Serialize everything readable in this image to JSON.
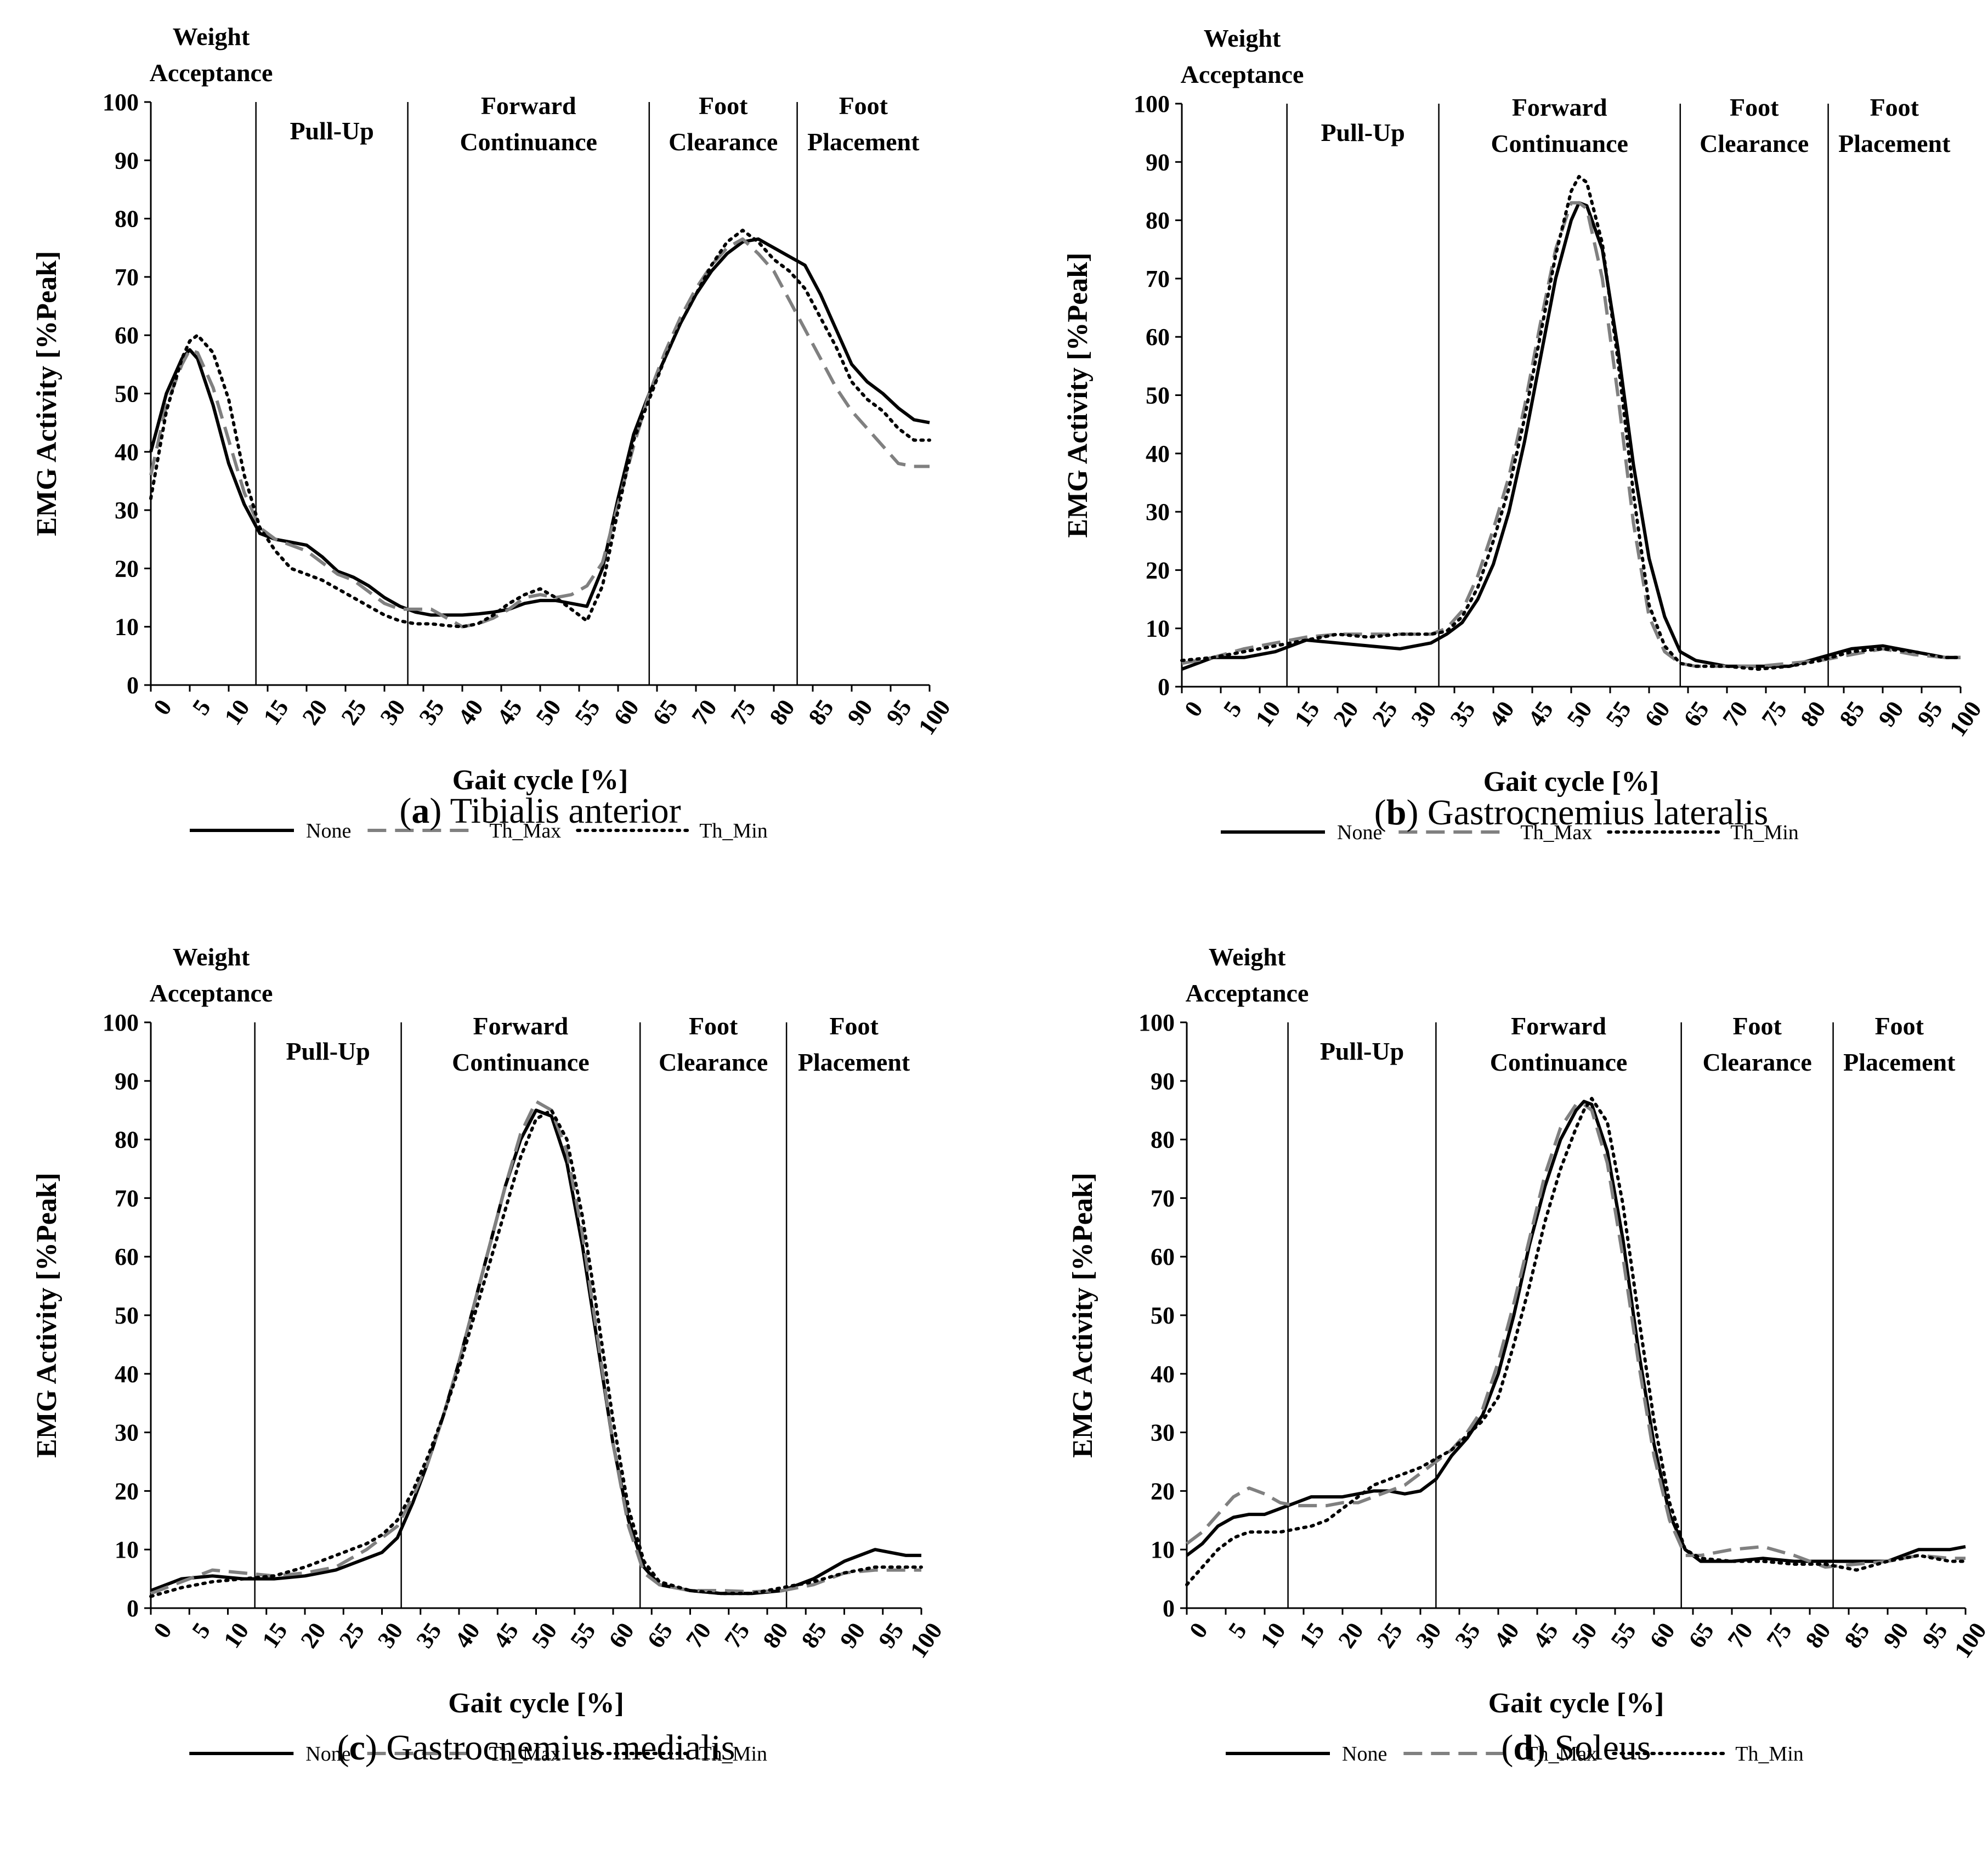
{
  "figure": {
    "panels": [
      {
        "caption_letter": "a",
        "caption_text": "Tibialis anterior"
      },
      {
        "caption_letter": "b",
        "caption_text": "Gastrocnemius lateralis"
      },
      {
        "caption_letter": "c",
        "caption_text": "Gastrocnemius medialis"
      },
      {
        "caption_letter": "d",
        "caption_text": "Soleus"
      }
    ],
    "caption_paren_open": "(",
    "caption_paren_close": ")",
    "phase_labels": [
      [
        "Weight",
        "Acceptance"
      ],
      [
        "Pull-Up"
      ],
      [
        "Forward",
        "Continuance"
      ],
      [
        "Foot",
        "Clearance"
      ],
      [
        "Foot",
        "Placement"
      ]
    ],
    "series_styles": {
      "None": {
        "color": "#000000",
        "dash": ""
      },
      "Th_Max": {
        "color": "#808080",
        "dash": "34,16"
      },
      "Th_Min": {
        "color": "#000000",
        "dash": "4,10"
      }
    }
  },
  "chart_data": [
    {
      "type": "line",
      "xlabel": "Gait cycle [%]",
      "ylabel": "EMG Activity [%Peak]",
      "xlim": [
        0,
        100
      ],
      "ylim": [
        0,
        100
      ],
      "xticks": [
        0,
        5,
        10,
        15,
        20,
        25,
        30,
        35,
        40,
        45,
        50,
        55,
        60,
        65,
        70,
        75,
        80,
        85,
        90,
        95,
        100
      ],
      "yticks": [
        0,
        10,
        20,
        30,
        40,
        50,
        60,
        70,
        80,
        90,
        100
      ],
      "phase_boundaries": [
        13.5,
        33,
        64,
        83
      ],
      "legend": [
        "None",
        "Th_Max",
        "Th_Min"
      ],
      "legend_position": "bottom",
      "x": [
        0,
        2,
        4,
        5,
        6,
        8,
        10,
        12,
        14,
        16,
        18,
        20,
        22,
        24,
        26,
        28,
        30,
        32,
        34,
        36,
        38,
        40,
        42,
        44,
        46,
        48,
        50,
        52,
        54,
        56,
        58,
        60,
        62,
        64,
        66,
        68,
        70,
        72,
        74,
        76,
        78,
        80,
        82,
        84,
        86,
        88,
        90,
        92,
        94,
        96,
        98,
        100
      ],
      "series": [
        {
          "name": "None",
          "values": [
            40,
            50,
            56,
            57.5,
            56,
            48,
            38,
            31,
            26,
            25,
            24.5,
            24,
            22,
            19.5,
            18.5,
            17,
            15,
            13.5,
            12.5,
            12,
            12,
            12,
            12.2,
            12.5,
            13,
            14,
            14.5,
            14.5,
            14,
            13.5,
            20,
            32,
            43,
            50,
            56,
            62,
            67,
            71,
            74,
            76,
            76.5,
            75,
            73.5,
            72,
            67,
            61,
            55,
            52,
            50,
            47.5,
            45.5,
            45
          ]
        },
        {
          "name": "Th_Max",
          "values": [
            36,
            48,
            55,
            57.5,
            57,
            51,
            42,
            33,
            27,
            25,
            24,
            23,
            21,
            19,
            18,
            16,
            14,
            13,
            13,
            13,
            11.5,
            10,
            10.5,
            11.5,
            13,
            15,
            15.5,
            15,
            15.5,
            17,
            21,
            31,
            41,
            50,
            57,
            63,
            68,
            72,
            75,
            76.5,
            74,
            71,
            66,
            61,
            56,
            51,
            47,
            44,
            41,
            38,
            37.5,
            37.5
          ]
        },
        {
          "name": "Th_Min",
          "values": [
            32,
            47,
            56,
            59,
            60,
            57,
            49,
            36,
            27,
            23,
            20,
            19,
            18,
            16.5,
            15,
            13.5,
            12,
            11,
            10.5,
            10.5,
            10.2,
            10,
            10.5,
            12,
            14,
            15.5,
            16.5,
            15,
            13,
            11,
            17,
            30,
            42,
            49,
            56,
            62,
            67,
            72,
            76,
            78,
            76,
            73,
            71,
            68,
            63,
            58,
            52,
            49,
            47,
            44,
            42,
            42
          ]
        }
      ]
    },
    {
      "type": "line",
      "xlabel": "Gait cycle [%]",
      "ylabel": "EMG Activity [%Peak]",
      "xlim": [
        0,
        100
      ],
      "ylim": [
        0,
        100
      ],
      "xticks": [
        0,
        5,
        10,
        15,
        20,
        25,
        30,
        35,
        40,
        45,
        50,
        55,
        60,
        65,
        70,
        75,
        80,
        85,
        90,
        95,
        100
      ],
      "yticks": [
        0,
        10,
        20,
        30,
        40,
        50,
        60,
        70,
        80,
        90,
        100
      ],
      "phase_boundaries": [
        13.5,
        33,
        64,
        83
      ],
      "legend": [
        "None",
        "Th_Max",
        "Th_Min"
      ],
      "legend_position": "bottom",
      "x": [
        0,
        4,
        8,
        12,
        16,
        20,
        24,
        28,
        32,
        34,
        36,
        38,
        40,
        42,
        44,
        46,
        48,
        50,
        51,
        52,
        54,
        56,
        58,
        60,
        62,
        64,
        66,
        70,
        74,
        78,
        82,
        86,
        90,
        94,
        98,
        100
      ],
      "series": [
        {
          "name": "None",
          "values": [
            3,
            5,
            5,
            6,
            8,
            7.5,
            7,
            6.5,
            7.5,
            9,
            11,
            15,
            21,
            30,
            42,
            56,
            70,
            80,
            83,
            82.5,
            75,
            58,
            38,
            22,
            12,
            6,
            4.5,
            3.5,
            3.5,
            3.5,
            5,
            6.5,
            7,
            6,
            5,
            5
          ]
        },
        {
          "name": "Th_Max",
          "values": [
            4,
            5,
            6.5,
            7.5,
            8.5,
            9,
            9,
            9,
            9,
            10,
            13,
            19,
            27,
            36,
            48,
            62,
            75,
            83,
            83,
            82,
            70,
            50,
            28,
            12,
            6,
            4,
            3.5,
            3.5,
            3.5,
            4,
            4.5,
            5.5,
            6.5,
            5.5,
            5,
            5
          ]
        },
        {
          "name": "Th_Min",
          "values": [
            4.5,
            5,
            6,
            7,
            8,
            9,
            8.5,
            9,
            9,
            9.5,
            12,
            17,
            25,
            34,
            46,
            60,
            74,
            85,
            87.5,
            86.5,
            76,
            56,
            33,
            14,
            7,
            4,
            3.5,
            3.5,
            3,
            3.5,
            4.5,
            6,
            6.5,
            6,
            5,
            5
          ]
        }
      ]
    },
    {
      "type": "line",
      "xlabel": "Gait cycle [%]",
      "ylabel": "EMG Activity [%Peak]",
      "xlim": [
        0,
        100
      ],
      "ylim": [
        0,
        100
      ],
      "xticks": [
        0,
        5,
        10,
        15,
        20,
        25,
        30,
        35,
        40,
        45,
        50,
        55,
        60,
        65,
        70,
        75,
        80,
        85,
        90,
        95,
        100
      ],
      "yticks": [
        0,
        10,
        20,
        30,
        40,
        50,
        60,
        70,
        80,
        90,
        100
      ],
      "phase_boundaries": [
        13.5,
        32.5,
        63.5,
        82.5
      ],
      "legend": [
        "None",
        "Th_Max",
        "Th_Min"
      ],
      "legend_position": "bottom",
      "x": [
        0,
        4,
        8,
        12,
        16,
        20,
        24,
        28,
        30,
        32,
        34,
        36,
        38,
        40,
        42,
        44,
        46,
        48,
        50,
        52,
        54,
        56,
        58,
        60,
        62,
        64,
        66,
        70,
        74,
        78,
        82,
        86,
        90,
        94,
        98,
        100
      ],
      "series": [
        {
          "name": "None",
          "values": [
            3,
            5,
            5.5,
            5,
            5,
            5.5,
            6.5,
            8.5,
            9.5,
            12,
            18,
            25,
            33,
            42,
            52,
            62,
            72,
            80,
            85,
            84,
            76,
            62,
            45,
            28,
            15,
            7,
            4,
            3,
            2.5,
            2.5,
            3,
            5,
            8,
            10,
            9,
            9
          ]
        },
        {
          "name": "Th_Max",
          "values": [
            2.5,
            4.5,
            6.5,
            6,
            5.5,
            6,
            7,
            10,
            12,
            14,
            19,
            25,
            33,
            42,
            52,
            62,
            72,
            81,
            86.5,
            85,
            78,
            64,
            46,
            28,
            14,
            6,
            4,
            3,
            3,
            2.8,
            3,
            4,
            6,
            6.5,
            6.5,
            6.5
          ]
        },
        {
          "name": "Th_Min",
          "values": [
            2,
            3.5,
            4.5,
            5,
            5.5,
            7,
            9,
            11,
            12.5,
            15,
            20,
            26,
            33,
            41,
            50,
            59,
            68,
            77,
            83.5,
            85,
            80,
            67,
            50,
            32,
            17,
            8,
            4.5,
            3,
            2.5,
            2.5,
            3.5,
            4.5,
            6,
            7,
            7,
            7
          ]
        }
      ]
    },
    {
      "type": "line",
      "xlabel": "Gait cycle [%]",
      "ylabel": "EMG Activity [%Peak]",
      "xlim": [
        0,
        100
      ],
      "ylim": [
        0,
        100
      ],
      "xticks": [
        0,
        5,
        10,
        15,
        20,
        25,
        30,
        35,
        40,
        45,
        50,
        55,
        60,
        65,
        70,
        75,
        80,
        85,
        90,
        95,
        100
      ],
      "yticks": [
        0,
        10,
        20,
        30,
        40,
        50,
        60,
        70,
        80,
        90,
        100
      ],
      "phase_boundaries": [
        13,
        32,
        63.5,
        83
      ],
      "legend": [
        "None",
        "Th_Max",
        "Th_Min"
      ],
      "legend_position": "bottom",
      "x": [
        0,
        2,
        4,
        6,
        8,
        10,
        12,
        14,
        16,
        18,
        20,
        22,
        24,
        26,
        28,
        30,
        32,
        34,
        36,
        38,
        40,
        42,
        44,
        46,
        48,
        50,
        51,
        52,
        54,
        56,
        58,
        60,
        62,
        64,
        66,
        70,
        74,
        78,
        82,
        86,
        90,
        94,
        98,
        100
      ],
      "series": [
        {
          "name": "None",
          "values": [
            9,
            11,
            14,
            15.5,
            16,
            16,
            17,
            18,
            19,
            19,
            19,
            19.5,
            20,
            20,
            19.5,
            20,
            22,
            26,
            29,
            33,
            40,
            50,
            62,
            72,
            80,
            85,
            86.5,
            86,
            78,
            63,
            44,
            28,
            16,
            10,
            8,
            8,
            8.5,
            8,
            8,
            8,
            8,
            10,
            10,
            10.5
          ]
        },
        {
          "name": "Th_Max",
          "values": [
            11,
            13,
            16,
            19,
            20.5,
            19.5,
            18,
            17.5,
            17.5,
            17.5,
            18,
            18,
            19,
            20,
            21,
            23,
            25,
            27,
            30,
            34,
            42,
            52,
            63,
            74,
            82,
            86,
            86,
            85,
            76,
            60,
            42,
            26,
            15,
            9,
            9,
            10,
            10.5,
            9,
            7,
            7.5,
            8,
            9,
            8.5,
            8.5
          ]
        },
        {
          "name": "Th_Min",
          "values": [
            4,
            7,
            10,
            12,
            13,
            13,
            13,
            13.5,
            14,
            15,
            17,
            19,
            21,
            22,
            23,
            24,
            25.5,
            27,
            29.5,
            32,
            36,
            45,
            55,
            66,
            75,
            82,
            85,
            87,
            83,
            69,
            50,
            32,
            18,
            10,
            8.5,
            8,
            8,
            7.5,
            7.5,
            6.5,
            8,
            9,
            8,
            8
          ]
        }
      ]
    }
  ]
}
